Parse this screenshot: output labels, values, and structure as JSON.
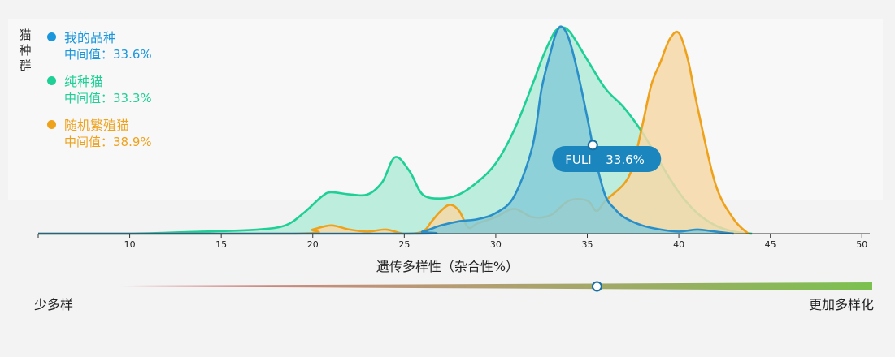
{
  "y_axis_label": [
    "猫",
    "种",
    "群"
  ],
  "legend": [
    {
      "name": "我的品种",
      "median_label": "中间值：33.6%",
      "color": "#1a96dc"
    },
    {
      "name": "纯种猫",
      "median_label": "中间值：33.3%",
      "color": "#1ecf96"
    },
    {
      "name": "随机繁殖猫",
      "median_label": "中间值：38.9%",
      "color": "#eea21c"
    }
  ],
  "tooltip": {
    "name": "FULI",
    "value_label": "33.6%",
    "x": 35.3
  },
  "diversity_scale": {
    "low_label": "少多样",
    "high_label": "更加多样化",
    "marker_position": 0.67
  },
  "chart_data": {
    "type": "area",
    "title": "",
    "xlabel": "遗传多样性（杂合性%）",
    "ylabel": "猫种群",
    "xlim": [
      5,
      50.3
    ],
    "ylim": [
      0,
      100
    ],
    "xticks": [
      10,
      15,
      20,
      25,
      30,
      35,
      40,
      45,
      50
    ],
    "grid": false,
    "legend_position": "top-left",
    "series": [
      {
        "name": "纯种猫",
        "color": "#1ecf96",
        "fill": "#b2ebd8",
        "x": [
          5,
          10,
          14,
          17,
          18.5,
          19.5,
          20.5,
          21,
          22,
          23,
          23.8,
          24.5,
          25.3,
          26,
          27,
          28,
          29,
          30,
          31,
          32,
          32.5,
          33,
          33.4,
          34,
          35,
          36,
          37,
          38,
          39,
          40,
          41,
          42,
          43,
          44
        ],
        "y": [
          0,
          0,
          1,
          2,
          4,
          10,
          18,
          20,
          19,
          19,
          25,
          37,
          30,
          19,
          17,
          19,
          25,
          34,
          50,
          72,
          84,
          94,
          99,
          98,
          84,
          70,
          61,
          49,
          34,
          20,
          10,
          4,
          1,
          0
        ]
      },
      {
        "name": "随机繁殖猫",
        "color": "#eea21c",
        "fill": "#f6d8a8",
        "x": [
          5,
          19,
          20,
          21,
          22,
          23,
          24,
          25,
          26,
          26.5,
          27,
          27.5,
          28,
          28.5,
          29,
          30,
          31,
          32,
          33,
          34,
          35,
          35.5,
          36,
          37,
          37.5,
          38,
          38.5,
          39,
          39.5,
          40,
          40.5,
          41,
          42,
          43,
          43.8
        ],
        "y": [
          0,
          0,
          2,
          4,
          2,
          1,
          2,
          0,
          1,
          6,
          11,
          14,
          11,
          3,
          5,
          8,
          12,
          8,
          9,
          16,
          16,
          11,
          16,
          24,
          33,
          52,
          72,
          83,
          94,
          97,
          84,
          62,
          24,
          7,
          0
        ]
      },
      {
        "name": "我的品种",
        "color": "#2a8ec8",
        "fill": "#87cbd8",
        "x": [
          5,
          25,
          26,
          27,
          28,
          29,
          30,
          31,
          32,
          32.5,
          33,
          33.3,
          33.6,
          34,
          34.5,
          35,
          35.5,
          36,
          36.5,
          37,
          38,
          39,
          40,
          41,
          42,
          43
        ],
        "y": [
          0,
          0,
          1,
          4,
          6,
          7,
          10,
          18,
          42,
          70,
          88,
          97,
          100,
          94,
          77,
          56,
          34,
          18,
          12,
          8,
          4,
          2,
          1,
          2,
          1,
          0
        ]
      }
    ]
  }
}
